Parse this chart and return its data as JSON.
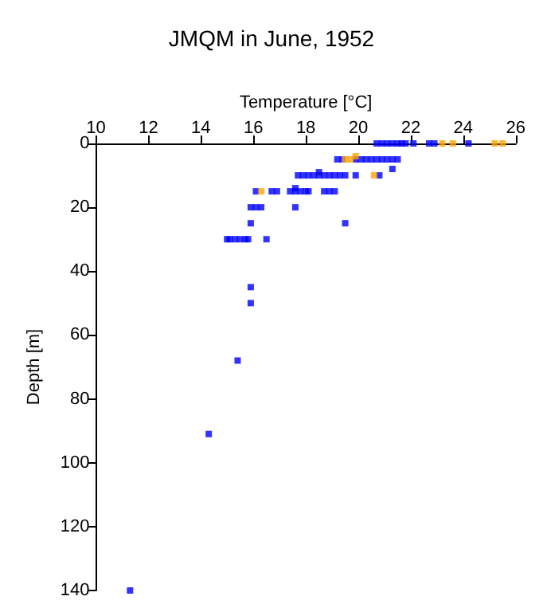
{
  "chart_data": {
    "type": "scatter",
    "title": "JMQM in June, 1952",
    "xlabel": "Temperature [°C]",
    "ylabel": "Depth [m]",
    "xlim": [
      10,
      26
    ],
    "xticks": [
      10,
      12,
      14,
      16,
      18,
      20,
      22,
      24,
      26
    ],
    "ylim": [
      140,
      0
    ],
    "yticks": [
      0,
      20,
      40,
      60,
      80,
      100,
      120,
      140
    ],
    "grid": false,
    "marker": "square",
    "series": [
      {
        "color": "#0000ff",
        "x": [
          20.7,
          20.9,
          21.1,
          21.3,
          21.5,
          21.65,
          21.8,
          22.1,
          22.7,
          22.9,
          24.2,
          19.2,
          19.4,
          19.9,
          20.1,
          20.3,
          20.5,
          20.7,
          20.9,
          21.1,
          21.3,
          21.5,
          21.3,
          18.5,
          17.7,
          17.9,
          18.1,
          18.3,
          18.5,
          18.7,
          18.9,
          19.1,
          19.3,
          19.5,
          19.9,
          20.8,
          17.6,
          16.1,
          16.7,
          16.9,
          17.4,
          17.6,
          17.8,
          18.0,
          18.1,
          18.7,
          18.9,
          19.1,
          15.9,
          16.1,
          16.3,
          17.6,
          15.9,
          19.5,
          15.0,
          15.1,
          15.3,
          15.5,
          15.7,
          15.8,
          16.5,
          15.9,
          15.9,
          15.4,
          14.3,
          11.3
        ],
        "values": [
          0,
          0,
          0,
          0,
          0,
          0,
          0,
          0,
          0,
          0,
          0,
          5,
          5,
          5,
          5,
          5,
          5,
          5,
          5,
          5,
          5,
          5,
          8,
          9,
          10,
          10,
          10,
          10,
          10,
          10,
          10,
          10,
          10,
          10,
          10,
          10,
          14,
          15,
          15,
          15,
          15,
          15,
          15,
          15,
          15,
          15,
          15,
          15,
          20,
          20,
          20,
          20,
          25,
          25,
          30,
          30,
          30,
          30,
          30,
          30,
          30,
          45,
          50,
          68,
          91,
          140
        ]
      },
      {
        "color": "#ffa500",
        "x": [
          23.2,
          23.6,
          25.2,
          25.5,
          19.9,
          19.5,
          19.7,
          20.6,
          16.3
        ],
        "values": [
          0,
          0,
          0,
          0,
          4,
          5,
          5,
          10,
          15
        ]
      }
    ]
  }
}
